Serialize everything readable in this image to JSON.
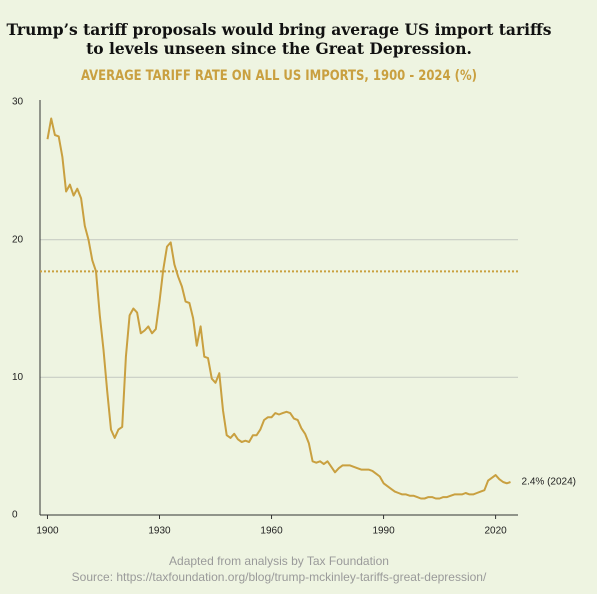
{
  "chart_data": {
    "type": "line",
    "title": "Trump’s tariff proposals would bring average US import tariffs to levels unseen since the Great Depression.",
    "subtitle": "AVERAGE TARIFF RATE ON ALL US IMPORTS, 1900 - 2024 (%)",
    "annotation": "2.4% (2024)",
    "reference_line": 17.7,
    "footer": [
      "Adapted from analysis by Tax Foundation",
      "Source: https://taxfoundation.org/blog/trump-mckinley-tariffs-great-depression/"
    ],
    "x": [
      1900,
      1901,
      1902,
      1903,
      1904,
      1905,
      1906,
      1907,
      1908,
      1909,
      1910,
      1911,
      1912,
      1913,
      1914,
      1915,
      1916,
      1917,
      1918,
      1919,
      1920,
      1921,
      1922,
      1923,
      1924,
      1925,
      1926,
      1927,
      1928,
      1929,
      1930,
      1931,
      1932,
      1933,
      1934,
      1935,
      1936,
      1937,
      1938,
      1939,
      1940,
      1941,
      1942,
      1943,
      1944,
      1945,
      1946,
      1947,
      1948,
      1949,
      1950,
      1951,
      1952,
      1953,
      1954,
      1955,
      1956,
      1957,
      1958,
      1959,
      1960,
      1961,
      1962,
      1963,
      1964,
      1965,
      1966,
      1967,
      1968,
      1969,
      1970,
      1971,
      1972,
      1973,
      1974,
      1975,
      1976,
      1977,
      1978,
      1979,
      1980,
      1981,
      1982,
      1983,
      1984,
      1985,
      1986,
      1987,
      1988,
      1989,
      1990,
      1991,
      1992,
      1993,
      1994,
      1995,
      1996,
      1997,
      1998,
      1999,
      2000,
      2001,
      2002,
      2003,
      2004,
      2005,
      2006,
      2007,
      2008,
      2009,
      2010,
      2011,
      2012,
      2013,
      2014,
      2015,
      2016,
      2017,
      2018,
      2019,
      2020,
      2021,
      2022,
      2023,
      2024
    ],
    "series": [
      {
        "name": "Average tariff rate",
        "color": "#c9a040",
        "values": [
          27.3,
          28.8,
          27.6,
          27.5,
          26,
          23.5,
          24,
          23.2,
          23.7,
          23,
          21,
          20,
          18.5,
          17.7,
          14.5,
          12,
          9,
          6.2,
          5.6,
          6.2,
          6.4,
          11.5,
          14.5,
          15,
          14.7,
          13.2,
          13.4,
          13.7,
          13.2,
          13.5,
          15.5,
          17.8,
          19.5,
          19.8,
          18.2,
          17.3,
          16.6,
          15.5,
          15.4,
          14.3,
          12.3,
          13.7,
          11.5,
          11.4,
          9.9,
          9.6,
          10.3,
          7.6,
          5.8,
          5.6,
          5.9,
          5.5,
          5.3,
          5.4,
          5.3,
          5.8,
          5.8,
          6.2,
          6.9,
          7.1,
          7.1,
          7.4,
          7.3,
          7.4,
          7.5,
          7.4,
          7.0,
          6.9,
          6.3,
          5.9,
          5.2,
          3.9,
          3.8,
          3.9,
          3.7,
          3.9,
          3.5,
          3.1,
          3.4,
          3.6,
          3.6,
          3.6,
          3.5,
          3.4,
          3.3,
          3.3,
          3.3,
          3.2,
          3.0,
          2.8,
          2.3,
          2.1,
          1.9,
          1.7,
          1.6,
          1.5,
          1.5,
          1.4,
          1.4,
          1.3,
          1.2,
          1.2,
          1.3,
          1.3,
          1.2,
          1.2,
          1.3,
          1.3,
          1.4,
          1.5,
          1.5,
          1.5,
          1.6,
          1.5,
          1.5,
          1.6,
          1.7,
          1.8,
          2.5,
          2.7,
          2.9,
          2.6,
          2.4,
          2.3,
          2.4
        ]
      }
    ],
    "xlim": [
      1898,
      2026
    ],
    "xticks": [
      1900,
      1930,
      1960,
      1990,
      2020
    ],
    "ylim": [
      0,
      30
    ],
    "yticks": [
      0,
      10,
      20,
      30
    ],
    "grid": true
  }
}
